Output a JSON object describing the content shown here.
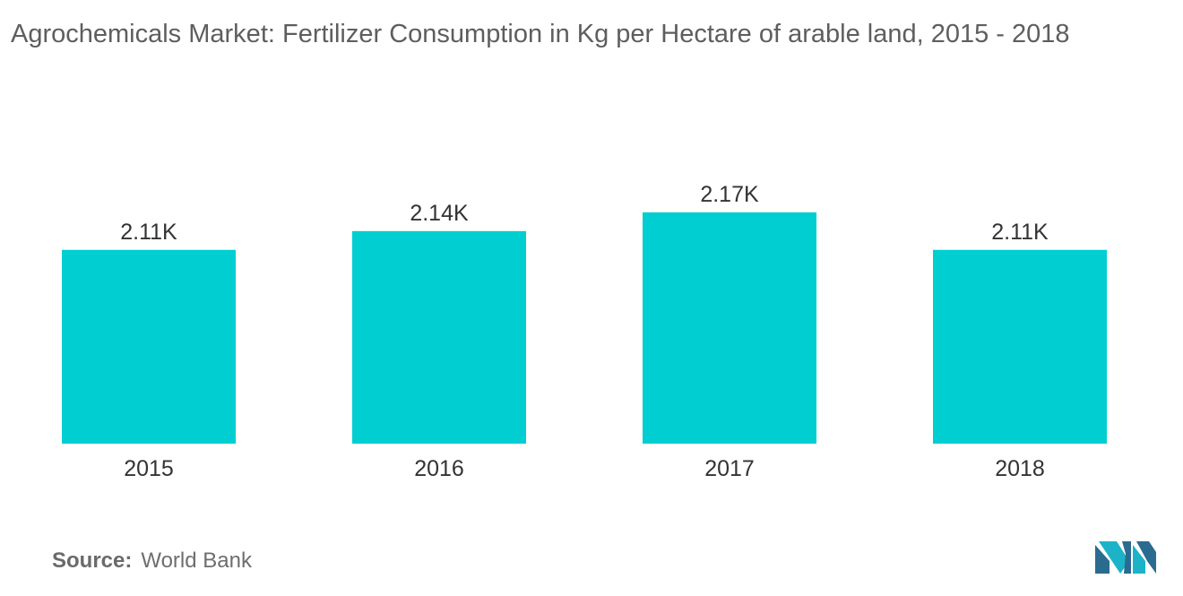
{
  "title": "Agrochemicals Market: Fertilizer Consumption in Kg per Hectare of arable land, 2015 - 2018",
  "source": {
    "label": "Source:",
    "value": "World Bank"
  },
  "colors": {
    "bar": "#00ced1",
    "text": "#5e5e5e",
    "logo_dark": "#2b6b8f",
    "logo_light": "#1cb3c8"
  },
  "logo_icon": "mordor-intelligence-logo",
  "chart_data": {
    "type": "bar",
    "categories": [
      "2015",
      "2016",
      "2017",
      "2018"
    ],
    "values": [
      2110,
      2140,
      2170,
      2110
    ],
    "data_labels": [
      "2.11K",
      "2.14K",
      "2.17K",
      "2.11K"
    ],
    "title": "Agrochemicals Market: Fertilizer Consumption in Kg per Hectare of arable land, 2015 - 2018",
    "xlabel": "",
    "ylabel": "",
    "ylim": [
      0,
      2200
    ],
    "grid": false,
    "legend": "none"
  }
}
